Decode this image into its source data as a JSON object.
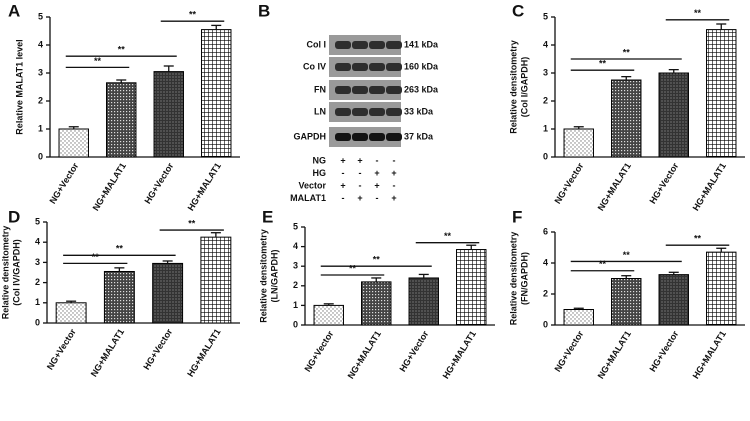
{
  "chart_data": [
    {
      "type": "bar",
      "panel": "A",
      "ylabel": [
        "Relative MALAT1 level"
      ],
      "categories": [
        "NG+Vector",
        "NG+MALAT1",
        "HG+Vector",
        "HG+MALAT1"
      ],
      "values": [
        1.0,
        2.65,
        3.05,
        4.55
      ],
      "errors": [
        0.08,
        0.1,
        0.2,
        0.15
      ],
      "ylim": [
        0,
        5
      ],
      "yticks": [
        0,
        1,
        2,
        3,
        4,
        5
      ],
      "annotations": [
        {
          "label": "**",
          "from": 0,
          "to": 1,
          "y": 3.2
        },
        {
          "label": "**",
          "from": 0,
          "to": 2,
          "y": 3.6
        },
        {
          "label": "**",
          "from": 2,
          "to": 3,
          "y": 4.85
        }
      ]
    },
    {
      "type": "bar",
      "panel": "C",
      "ylabel": [
        "Relative densitometry",
        "(Col I/GAPDH)"
      ],
      "categories": [
        "NG+Vector",
        "NG+MALAT1",
        "HG+Vector",
        "HG+MALAT1"
      ],
      "values": [
        1.0,
        2.75,
        3.0,
        4.55
      ],
      "errors": [
        0.08,
        0.12,
        0.12,
        0.2
      ],
      "ylim": [
        0,
        5
      ],
      "yticks": [
        0,
        1,
        2,
        3,
        4,
        5
      ],
      "annotations": [
        {
          "label": "**",
          "from": 0,
          "to": 1,
          "y": 3.1
        },
        {
          "label": "**",
          "from": 0,
          "to": 2,
          "y": 3.5
        },
        {
          "label": "**",
          "from": 2,
          "to": 3,
          "y": 4.9
        }
      ]
    },
    {
      "type": "bar",
      "panel": "D",
      "ylabel": [
        "Relative densitometry",
        "(Col IV/GAPDH)"
      ],
      "categories": [
        "NG+Vector",
        "NG+MALAT1",
        "HG+Vector",
        "HG+MALAT1"
      ],
      "values": [
        1.0,
        2.55,
        2.95,
        4.25
      ],
      "errors": [
        0.08,
        0.18,
        0.12,
        0.22
      ],
      "ylim": [
        0,
        5
      ],
      "yticks": [
        0,
        1,
        2,
        3,
        4,
        5
      ],
      "annotations": [
        {
          "label": "**",
          "from": 0,
          "to": 1,
          "y": 2.95
        },
        {
          "label": "**",
          "from": 0,
          "to": 2,
          "y": 3.35
        },
        {
          "label": "**",
          "from": 2,
          "to": 3,
          "y": 4.6
        }
      ]
    },
    {
      "type": "bar",
      "panel": "E",
      "ylabel": [
        "Relative densitometry",
        "(LN/GAPDH)"
      ],
      "categories": [
        "NG+Vector",
        "NG+MALAT1",
        "HG+Vector",
        "HG+MALAT1"
      ],
      "values": [
        1.0,
        2.2,
        2.4,
        3.85
      ],
      "errors": [
        0.08,
        0.2,
        0.18,
        0.22
      ],
      "ylim": [
        0,
        5
      ],
      "yticks": [
        0,
        1,
        2,
        3,
        4,
        5
      ],
      "annotations": [
        {
          "label": "**",
          "from": 0,
          "to": 1,
          "y": 2.55
        },
        {
          "label": "**",
          "from": 0,
          "to": 2,
          "y": 3.0
        },
        {
          "label": "**",
          "from": 2,
          "to": 3,
          "y": 4.2
        }
      ]
    },
    {
      "type": "bar",
      "panel": "F",
      "ylabel": [
        "Relative densitometry",
        "(FN/GAPDH)"
      ],
      "categories": [
        "NG+Vector",
        "NG+MALAT1",
        "HG+Vector",
        "HG+MALAT1"
      ],
      "values": [
        1.0,
        3.0,
        3.25,
        4.7
      ],
      "errors": [
        0.08,
        0.18,
        0.15,
        0.25
      ],
      "ylim": [
        0,
        6
      ],
      "yticks": [
        0,
        2,
        4,
        6
      ],
      "annotations": [
        {
          "label": "**",
          "from": 0,
          "to": 1,
          "y": 3.5
        },
        {
          "label": "**",
          "from": 0,
          "to": 2,
          "y": 4.1
        },
        {
          "label": "**",
          "from": 2,
          "to": 3,
          "y": 5.15
        }
      ]
    }
  ],
  "blot": {
    "panel": "B",
    "bands": [
      {
        "label": "Col  I",
        "size": "141 kDa"
      },
      {
        "label": "Co IV",
        "size": "160 kDa"
      },
      {
        "label": "FN",
        "size": "263 kDa"
      },
      {
        "label": "LN",
        "size": "33 kDa"
      },
      {
        "label": "GAPDH",
        "size": "37 kDa"
      }
    ],
    "conditions": [
      {
        "label": "NG",
        "signs": [
          "+",
          "+",
          "-",
          "-"
        ]
      },
      {
        "label": "HG",
        "signs": [
          "-",
          "-",
          "+",
          "+"
        ]
      },
      {
        "label": "Vector",
        "signs": [
          "+",
          "-",
          "+",
          "-"
        ]
      },
      {
        "label": "MALAT1",
        "signs": [
          "-",
          "+",
          "-",
          "+"
        ]
      }
    ]
  }
}
